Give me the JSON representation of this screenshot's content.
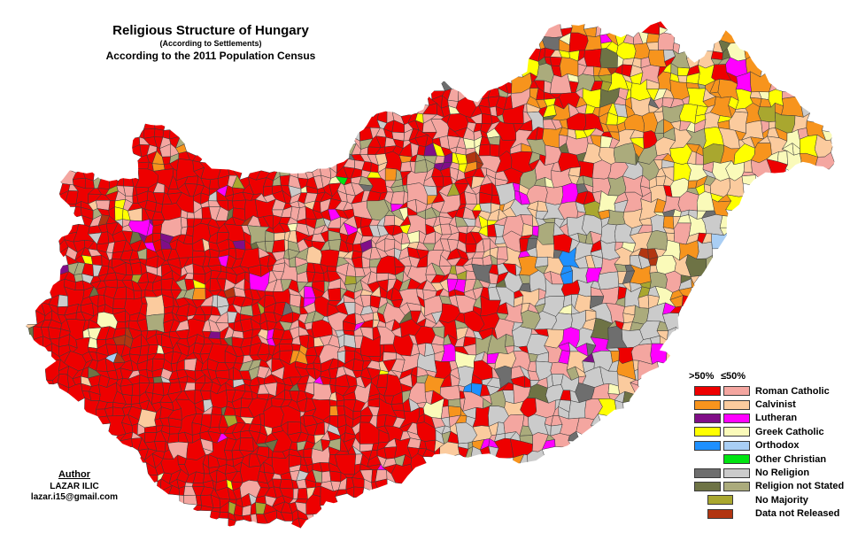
{
  "title": {
    "main": "Religious Structure of Hungary",
    "sub1": "(According to Settlements)",
    "sub2": "According to the 2011 Population Census"
  },
  "author": {
    "heading": "Author",
    "name": "LAZAR ILIC",
    "email": "lazar.i15@gmail.com"
  },
  "legend": {
    "col_major": ">50%",
    "col_minor": "≤50%",
    "entries": [
      {
        "key": "rc",
        "label": "Roman Catholic",
        "majority_color": "#EE0000",
        "minority_color": "#F4A6A0"
      },
      {
        "key": "cal",
        "label": "Calvinist",
        "majority_color": "#F7941D",
        "minority_color": "#FBCB9E"
      },
      {
        "key": "lut",
        "label": "Lutheran",
        "majority_color": "#800E88",
        "minority_color": "#FF00FF"
      },
      {
        "key": "gc",
        "label": "Greek Catholic",
        "majority_color": "#FFFF00",
        "minority_color": "#FAFAB9"
      },
      {
        "key": "orth",
        "label": "Orthodox",
        "majority_color": "#1E90FF",
        "minority_color": "#A9CEF4"
      },
      {
        "key": "oc",
        "label": "Other Christian",
        "majority_color": null,
        "minority_color": "#00E411"
      },
      {
        "key": "nr",
        "label": "No Religion",
        "majority_color": "#6E6E6E",
        "minority_color": "#CBCBCB"
      },
      {
        "key": "rns",
        "label": "Religion not Stated",
        "majority_color": "#6E7345",
        "minority_color": "#ABAB7C"
      },
      {
        "key": "nomaj",
        "label": "No Majority",
        "single_color": "#A9A72F"
      },
      {
        "key": "dnr",
        "label": "Data not Released",
        "single_color": "#B23511"
      }
    ]
  },
  "map": {
    "country": "Hungary",
    "unit": "settlements",
    "background": "#FFFFFF",
    "cell_stroke": "#3A3A3A"
  }
}
